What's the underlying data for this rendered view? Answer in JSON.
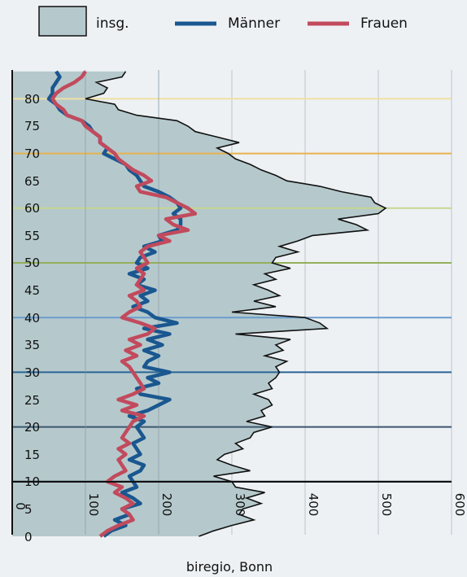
{
  "chart_data": {
    "type": "area",
    "orientation": "horizontal",
    "xlim": [
      0,
      600
    ],
    "ylim": [
      0,
      86
    ],
    "x_ticks": [
      "0",
      "100",
      "200",
      "300",
      "400",
      "500",
      "600"
    ],
    "y_ticks": [
      "0",
      "5",
      "10",
      "15",
      "20",
      "25",
      "30",
      "35",
      "40",
      "45",
      "50",
      "55",
      "60",
      "65",
      "70",
      "75",
      "80"
    ],
    "legend": {
      "position": "top"
    },
    "source": "biregio, Bonn",
    "series": [
      {
        "name": "insg.",
        "style": "area",
        "color": "#b5c9cc",
        "line_color": "#111111",
        "ages": [
          0,
          1,
          2,
          3,
          4,
          5,
          6,
          7,
          8,
          9,
          10,
          11,
          12,
          13,
          14,
          15,
          16,
          17,
          18,
          19,
          20,
          21,
          22,
          23,
          24,
          25,
          26,
          27,
          28,
          29,
          30,
          31,
          32,
          33,
          34,
          35,
          36,
          37,
          38,
          39,
          40,
          41,
          42,
          43,
          44,
          45,
          46,
          47,
          48,
          49,
          50,
          51,
          52,
          53,
          54,
          55,
          56,
          57,
          58,
          59,
          60,
          61,
          62,
          63,
          64,
          65,
          66,
          67,
          68,
          69,
          70,
          71,
          72,
          73,
          74,
          75,
          76,
          77,
          78,
          79,
          80,
          81,
          82,
          83,
          84,
          85
        ],
        "values": [
          255,
          275,
          300,
          330,
          310,
          315,
          340,
          320,
          345,
          305,
          300,
          275,
          325,
          300,
          280,
          290,
          315,
          305,
          325,
          330,
          355,
          320,
          345,
          340,
          355,
          350,
          330,
          355,
          350,
          360,
          365,
          360,
          375,
          345,
          370,
          360,
          380,
          305,
          430,
          420,
          400,
          300,
          360,
          330,
          365,
          350,
          330,
          360,
          345,
          380,
          355,
          360,
          390,
          365,
          390,
          410,
          485,
          470,
          445,
          500,
          510,
          495,
          490,
          450,
          420,
          375,
          360,
          340,
          325,
          305,
          295,
          280,
          310,
          280,
          250,
          240,
          225,
          170,
          145,
          140,
          100,
          125,
          130,
          115,
          150,
          155
        ],
        "box": [
          355,
          470,
          550,
          550
        ]
      },
      {
        "name": "Männer",
        "style": "line",
        "color": "#1a5790",
        "ages": [
          0,
          1,
          2,
          3,
          4,
          5,
          6,
          7,
          8,
          9,
          10,
          11,
          12,
          13,
          14,
          15,
          16,
          17,
          18,
          19,
          20,
          21,
          22,
          23,
          24,
          25,
          26,
          27,
          28,
          29,
          30,
          31,
          32,
          33,
          34,
          35,
          36,
          37,
          38,
          39,
          40,
          41,
          42,
          43,
          44,
          45,
          46,
          47,
          48,
          49,
          50,
          51,
          52,
          53,
          54,
          55,
          56,
          57,
          58,
          59,
          60,
          61,
          62,
          63,
          64,
          65,
          66,
          67,
          68,
          69,
          70,
          71,
          72,
          73,
          74,
          75,
          76,
          77,
          78,
          79,
          80,
          81,
          82,
          83,
          84,
          85
        ],
        "values": [
          125,
          135,
          155,
          140,
          160,
          150,
          175,
          165,
          150,
          170,
          165,
          160,
          175,
          180,
          160,
          175,
          170,
          165,
          180,
          175,
          170,
          180,
          160,
          185,
          200,
          215,
          175,
          170,
          200,
          185,
          215,
          180,
          185,
          200,
          180,
          205,
          185,
          215,
          180,
          225,
          195,
          185,
          165,
          185,
          175,
          195,
          170,
          180,
          160,
          185,
          170,
          175,
          195,
          180,
          205,
          200,
          225,
          230,
          230,
          220,
          230,
          225,
          215,
          200,
          180,
          175,
          170,
          160,
          155,
          140,
          125,
          130,
          120,
          120,
          110,
          105,
          95,
          75,
          65,
          60,
          50,
          55,
          55,
          60,
          65,
          60
        ],
        "box": [
          355,
          570,
          620,
          570
        ]
      },
      {
        "name": "Frauen",
        "style": "line",
        "color": "#c24a5d",
        "ages": [
          0,
          1,
          2,
          3,
          4,
          5,
          6,
          7,
          8,
          9,
          10,
          11,
          12,
          13,
          14,
          15,
          16,
          17,
          18,
          19,
          20,
          21,
          22,
          23,
          24,
          25,
          26,
          27,
          28,
          29,
          30,
          31,
          32,
          33,
          34,
          35,
          36,
          37,
          38,
          39,
          40,
          41,
          42,
          43,
          44,
          45,
          46,
          47,
          48,
          49,
          50,
          51,
          52,
          53,
          54,
          55,
          56,
          57,
          58,
          59,
          60,
          61,
          62,
          63,
          64,
          65,
          66,
          67,
          68,
          69,
          70,
          71,
          72,
          73,
          74,
          75,
          76,
          77,
          78,
          79,
          80,
          81,
          82,
          83,
          84,
          85
        ],
        "values": [
          120,
          130,
          145,
          165,
          160,
          150,
          165,
          155,
          140,
          150,
          130,
          140,
          155,
          150,
          145,
          155,
          145,
          160,
          150,
          155,
          160,
          165,
          180,
          150,
          170,
          145,
          165,
          180,
          175,
          170,
          165,
          160,
          150,
          170,
          155,
          175,
          160,
          185,
          195,
          175,
          150,
          160,
          175,
          170,
          160,
          180,
          170,
          175,
          180,
          170,
          185,
          180,
          175,
          185,
          215,
          200,
          240,
          220,
          210,
          250,
          240,
          225,
          210,
          175,
          170,
          190,
          180,
          165,
          155,
          145,
          140,
          130,
          120,
          120,
          110,
          100,
          95,
          75,
          70,
          60,
          55,
          60,
          70,
          85,
          95,
          100
        ],
        "box": [
          450,
          570,
          650,
          570
        ]
      }
    ],
    "reference_lines": [
      {
        "age": 10,
        "color": "#0b1c2b"
      },
      {
        "age": 20,
        "color": "#3d5670"
      },
      {
        "age": 30,
        "color": "#2a6496"
      },
      {
        "age": 40,
        "color": "#6b9ccd"
      },
      {
        "age": 50,
        "color": "#93b05a"
      },
      {
        "age": 60,
        "color": "#c5d690"
      },
      {
        "age": 70,
        "color": "#e8b24e"
      },
      {
        "age": 80,
        "color": "#ede0a4"
      }
    ]
  }
}
